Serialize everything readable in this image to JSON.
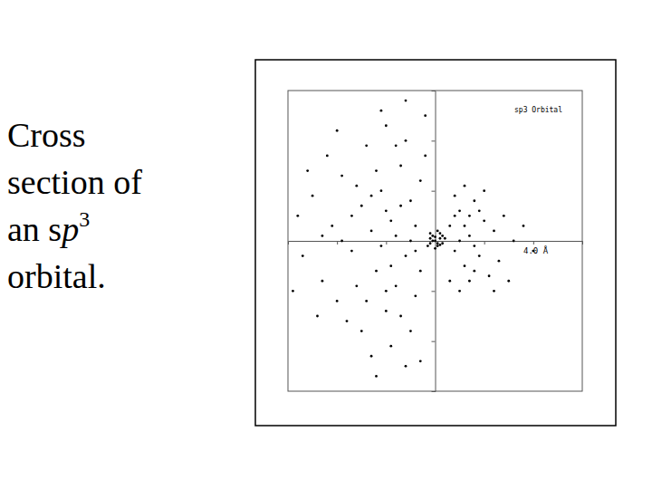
{
  "caption": [
    {
      "text": "Cross"
    },
    {
      "text": "section of"
    },
    {
      "text": "an s",
      "italic": "p",
      "sup": "3"
    },
    {
      "text": "orbital."
    }
  ],
  "chart_data": {
    "type": "scatter",
    "title": "sp3 Orbital",
    "annotations": [
      "4.0 Å"
    ],
    "marker": "dot",
    "color": "#000000",
    "tick_labels": false,
    "grid": false,
    "xlim": [
      -3,
      3
    ],
    "ylim": [
      -3,
      3
    ],
    "xticks": [
      -2,
      -1,
      1,
      2
    ],
    "yticks": [
      -2,
      -1,
      1,
      2
    ],
    "x": [
      -0.3,
      -0.5,
      -0.7,
      -0.9,
      -1.1,
      -1.3,
      -0.6,
      -0.8,
      -1.0,
      -1.2,
      -1.5,
      -1.7,
      -1.9,
      -2.1,
      -2.3,
      -2.5,
      -0.4,
      -0.6,
      -1.0,
      -1.4,
      -1.8,
      -0.9,
      -1.3,
      -0.5,
      -2.0,
      -2.7,
      -2.8,
      -1.6,
      -1.1,
      -0.8,
      -0.4,
      -0.3,
      -0.7,
      -1.4,
      -1.6,
      -2.2,
      -0.2,
      -0.6,
      -1.2,
      -0.3,
      -1.9,
      -2.4,
      -1.0,
      -0.5,
      -1.2,
      -0.9,
      -1.7,
      -2.0,
      -2.6,
      -2.9,
      -0.2,
      -0.4,
      -0.7,
      -1.0,
      -1.3,
      -0.8,
      -1.5,
      -0.6,
      -2.3,
      -1.1,
      0.3,
      0.4,
      0.5,
      0.6,
      0.7,
      0.8,
      0.9,
      1.0,
      1.1,
      1.2,
      0.5,
      0.6,
      0.7,
      0.8,
      0.9,
      1.3,
      1.4,
      1.6,
      1.8,
      0.4,
      0.6,
      0.3,
      0.5,
      1.0,
      1.2,
      0.7,
      1.5,
      2.0,
      0.4,
      0.8,
      0.0,
      0.1,
      -0.1,
      0.05,
      -0.05,
      0.15,
      0.1,
      -0.1,
      0.0,
      0.2,
      -0.15,
      0.05,
      0.0,
      0.1,
      -0.05,
      0.15,
      0.05,
      -0.1
    ],
    "values": [
      1.2,
      0.8,
      1.5,
      0.4,
      1.0,
      0.2,
      -0.3,
      -0.9,
      -1.4,
      -0.6,
      0.7,
      -0.2,
      1.3,
      0.3,
      -0.8,
      0.9,
      -1.1,
      2.0,
      2.3,
      1.9,
      -1.6,
      -2.1,
      -2.3,
      -1.8,
      -1.2,
      -0.3,
      0.5,
      -0.9,
      -0.1,
      0.1,
      0.3,
      -0.6,
      -1.5,
      -1.2,
      1.1,
      1.7,
      2.5,
      2.8,
      -2.7,
      -2.4,
      0.0,
      -1.5,
      0.6,
      0.0,
      1.4,
      -0.5,
      0.5,
      2.2,
      1.4,
      -1.0,
      1.7,
      -0.2,
      0.7,
      -1.0,
      0.9,
      1.9,
      -1.8,
      -2.5,
      0.1,
      2.6,
      0.3,
      -0.2,
      0.6,
      -0.5,
      0.1,
      0.8,
      -0.3,
      0.4,
      -0.7,
      0.2,
      0.0,
      0.3,
      -0.8,
      -0.1,
      0.6,
      -0.4,
      0.5,
      0.0,
      0.3,
      0.9,
      1.1,
      -0.8,
      -1.0,
      1.0,
      -1.0,
      0.5,
      -0.8,
      -0.2,
      0.5,
      -0.6,
      0.0,
      0.05,
      -0.05,
      -0.1,
      0.1,
      -0.05,
      0.15,
      0.15,
      -0.15,
      0.05,
      -0.1,
      0.2,
      0.08,
      -0.08,
      0.0,
      0.1,
      -0.05,
      0.05
    ]
  }
}
